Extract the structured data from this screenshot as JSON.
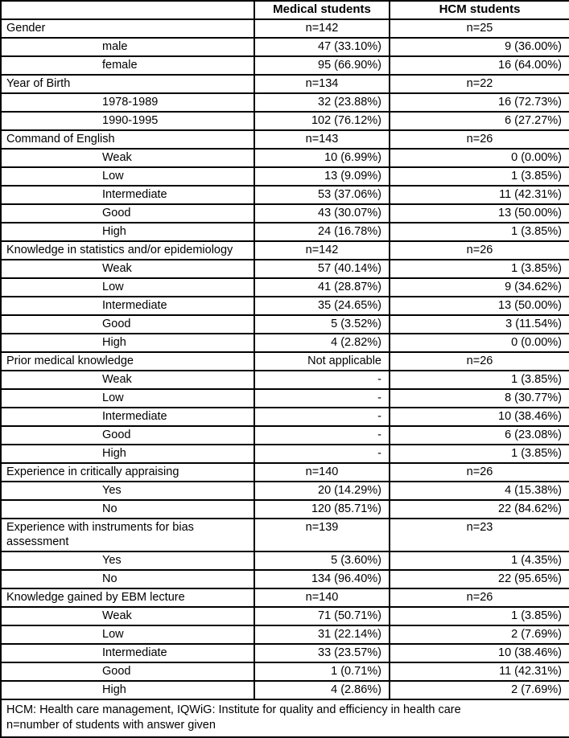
{
  "table": {
    "columns": [
      "",
      "Medical students",
      "HCM students"
    ],
    "sections": [
      {
        "label": "Gender",
        "medical": "n=142",
        "hcm": "n=25",
        "rows": [
          {
            "label": "male",
            "medical": "47 (33.10%)",
            "hcm": "9 (36.00%)"
          },
          {
            "label": "female",
            "medical": "95 (66.90%)",
            "hcm": "16 (64.00%)"
          }
        ]
      },
      {
        "label": "Year of Birth",
        "medical": "n=134",
        "hcm": "n=22",
        "rows": [
          {
            "label": "1978-1989",
            "medical": "32 (23.88%)",
            "hcm": "16 (72.73%)"
          },
          {
            "label": "1990-1995",
            "medical": "102 (76.12%)",
            "hcm": "6 (27.27%)"
          }
        ]
      },
      {
        "label": "Command of English",
        "medical": "n=143",
        "hcm": "n=26",
        "rows": [
          {
            "label": "Weak",
            "medical": "10 (6.99%)",
            "hcm": "0 (0.00%)"
          },
          {
            "label": "Low",
            "medical": "13 (9.09%)",
            "hcm": "1 (3.85%)"
          },
          {
            "label": "Intermediate",
            "medical": "53 (37.06%)",
            "hcm": "11 (42.31%)"
          },
          {
            "label": "Good",
            "medical": "43 (30.07%)",
            "hcm": "13 (50.00%)"
          },
          {
            "label": "High",
            "medical": "24 (16.78%)",
            "hcm": "1 (3.85%)"
          }
        ]
      },
      {
        "label": "Knowledge in statistics and/or epidemiology",
        "medical": "n=142",
        "hcm": "n=26",
        "rows": [
          {
            "label": "Weak",
            "medical": "57 (40.14%)",
            "hcm": "1 (3.85%)"
          },
          {
            "label": "Low",
            "medical": "41 (28.87%)",
            "hcm": "9 (34.62%)"
          },
          {
            "label": "Intermediate",
            "medical": "35 (24.65%)",
            "hcm": "13 (50.00%)"
          },
          {
            "label": "Good",
            "medical": "5 (3.52%)",
            "hcm": "3 (11.54%)"
          },
          {
            "label": "High",
            "medical": "4 (2.82%)",
            "hcm": "0 (0.00%)"
          }
        ]
      },
      {
        "label": "Prior medical knowledge",
        "medical": "Not applicable",
        "hcm": "n=26",
        "rows": [
          {
            "label": "Weak",
            "medical": "-",
            "hcm": "1 (3.85%)"
          },
          {
            "label": "Low",
            "medical": "-",
            "hcm": "8 (30.77%)"
          },
          {
            "label": "Intermediate",
            "medical": "-",
            "hcm": "10 (38.46%)"
          },
          {
            "label": "Good",
            "medical": "-",
            "hcm": "6 (23.08%)"
          },
          {
            "label": "High",
            "medical": "-",
            "hcm": "1 (3.85%)"
          }
        ]
      },
      {
        "label": "Experience in critically appraising",
        "medical": "n=140",
        "hcm": "n=26",
        "rows": [
          {
            "label": "Yes",
            "medical": "20 (14.29%)",
            "hcm": "4 (15.38%)"
          },
          {
            "label": "No",
            "medical": "120 (85.71%)",
            "hcm": "22 (84.62%)"
          }
        ]
      },
      {
        "label": "Experience with instruments for bias assessment",
        "medical": "n=139",
        "hcm": "n=23",
        "rows": [
          {
            "label": "Yes",
            "medical": "5 (3.60%)",
            "hcm": "1 (4.35%)"
          },
          {
            "label": "No",
            "medical": "134 (96.40%)",
            "hcm": "22 (95.65%)"
          }
        ]
      },
      {
        "label": "Knowledge gained by EBM lecture",
        "medical": "n=140",
        "hcm": "n=26",
        "rows": [
          {
            "label": "Weak",
            "medical": "71 (50.71%)",
            "hcm": "1 (3.85%)"
          },
          {
            "label": "Low",
            "medical": "31 (22.14%)",
            "hcm": "2 (7.69%)"
          },
          {
            "label": "Intermediate",
            "medical": "33 (23.57%)",
            "hcm": "10 (38.46%)"
          },
          {
            "label": "Good",
            "medical": "1 (0.71%)",
            "hcm": "11 (42.31%)"
          },
          {
            "label": "High",
            "medical": "4 (2.86%)",
            "hcm": "2 (7.69%)"
          }
        ]
      }
    ],
    "footnotes": [
      "HCM: Health care management, IQWiG: Institute for quality and efficiency in health care",
      "n=number of students with answer given"
    ]
  }
}
